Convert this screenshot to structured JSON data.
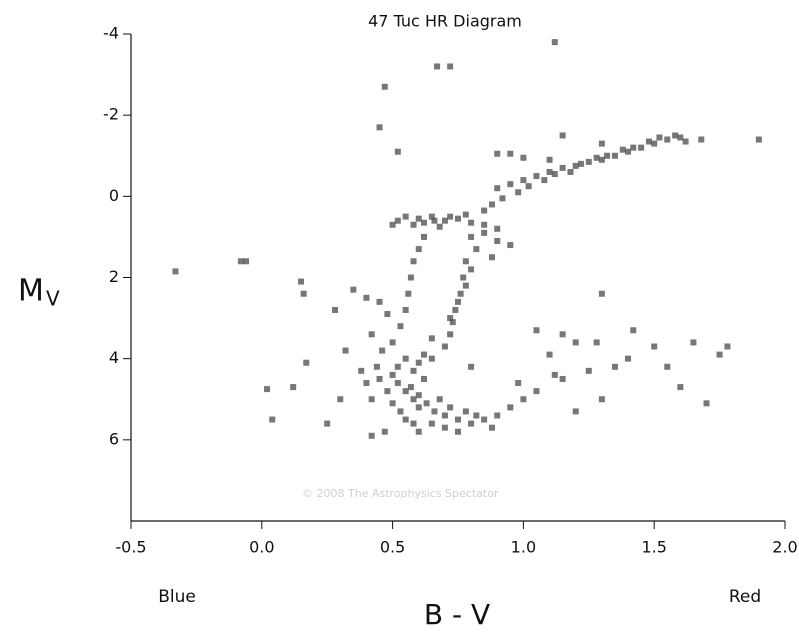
{
  "chart_data": {
    "type": "scatter",
    "title": "47 Tuc HR Diagram",
    "xlabel": "B - V",
    "ylabel": "M",
    "ylabel_sub": "V",
    "annotations": [
      "Blue",
      "Red"
    ],
    "watermark": "© 2008 The Astrophysics Spectator",
    "xlim": [
      -0.5,
      2.0
    ],
    "xticks": [
      -0.5,
      {
        "value": 0,
        "label": "0.0"
      },
      0.5,
      {
        "value": 1,
        "label": "1.0"
      },
      1.5,
      {
        "value": 2,
        "label": "2.0"
      }
    ],
    "ylim": [
      8,
      -4
    ],
    "yticks": [
      -4,
      -2,
      0,
      2,
      4,
      6
    ],
    "grid": false,
    "series": [
      {
        "color": "#4a4a4a",
        "x": [
          0.9,
          0.95,
          1.0,
          1.05,
          1.1,
          1.15,
          1.2,
          1.25,
          1.3,
          1.35,
          1.4,
          1.45,
          1.5,
          1.55,
          1.6,
          1.62,
          1.58,
          1.52,
          1.48,
          1.42,
          1.38,
          1.32,
          1.28,
          1.22,
          1.18,
          1.12,
          1.08,
          1.02,
          0.98,
          0.92,
          0.88,
          0.85,
          1.1,
          1.0,
          1.3,
          1.68,
          1.9,
          1.15,
          0.95,
          0.55,
          0.6,
          0.65,
          0.7,
          0.75,
          0.8,
          0.58,
          0.62,
          0.68,
          0.72,
          0.78,
          0.52,
          0.85,
          0.9,
          0.5,
          0.66,
          0.8,
          0.82,
          0.78,
          0.77,
          0.76,
          0.74,
          0.73,
          0.72,
          0.7,
          0.85,
          0.9,
          0.95,
          0.88,
          0.8,
          0.78,
          0.75,
          0.72,
          0.65,
          0.62,
          0.6,
          0.58,
          0.57,
          0.56,
          0.55,
          0.53,
          0.55,
          0.52,
          0.5,
          0.52,
          0.55,
          0.58,
          0.6,
          0.62,
          0.58,
          0.6,
          0.65,
          0.62,
          0.57,
          0.6,
          0.63,
          0.66,
          0.7,
          0.75,
          0.8,
          0.85,
          0.9,
          0.95,
          0.65,
          0.7,
          0.6,
          0.55,
          0.5,
          0.48,
          0.45,
          0.44,
          0.68,
          0.72,
          0.78,
          0.82,
          0.88,
          0.75,
          0.58,
          0.53,
          0.42,
          0.4,
          0.38,
          0.46,
          0.5,
          1.0,
          1.05,
          0.98,
          -0.33,
          -0.08,
          -0.06,
          0.15,
          0.16,
          0.12,
          0.02,
          0.04,
          0.25,
          0.3,
          0.32,
          0.17,
          0.28,
          0.35,
          0.4,
          0.45,
          0.42,
          0.48,
          1.12,
          0.72,
          0.67,
          0.47,
          0.45,
          0.52,
          0.9,
          1.05,
          1.15,
          1.2,
          1.3,
          1.35,
          1.42,
          1.5,
          1.6,
          1.65,
          1.7,
          1.75,
          1.78,
          1.12,
          1.15,
          1.2,
          1.1,
          1.25,
          1.4,
          1.55,
          1.28,
          0.42,
          0.47,
          0.8,
          1.3
        ],
        "values": [
          -0.2,
          -0.3,
          -0.4,
          -0.5,
          -0.6,
          -0.7,
          -0.75,
          -0.85,
          -0.9,
          -1.0,
          -1.1,
          -1.2,
          -1.3,
          -1.4,
          -1.45,
          -1.35,
          -1.5,
          -1.45,
          -1.35,
          -1.2,
          -1.15,
          -1.0,
          -0.95,
          -0.8,
          -0.6,
          -0.55,
          -0.4,
          -0.25,
          -0.1,
          0.05,
          0.2,
          0.35,
          -0.9,
          -0.95,
          -1.3,
          -1.4,
          -1.4,
          -1.5,
          -1.05,
          0.5,
          0.55,
          0.5,
          0.6,
          0.55,
          0.65,
          0.7,
          0.65,
          0.75,
          0.5,
          0.45,
          0.6,
          0.7,
          0.8,
          0.7,
          0.6,
          1.0,
          1.3,
          1.6,
          2.0,
          2.4,
          2.8,
          3.1,
          3.4,
          3.7,
          0.9,
          1.1,
          1.2,
          1.5,
          1.8,
          2.2,
          2.6,
          3.0,
          3.5,
          1.0,
          1.3,
          1.6,
          2.0,
          2.4,
          2.8,
          3.2,
          4.0,
          4.2,
          4.4,
          4.6,
          4.8,
          5.0,
          5.2,
          4.5,
          4.3,
          4.1,
          4.0,
          3.9,
          4.7,
          4.9,
          5.1,
          5.3,
          5.4,
          5.5,
          5.6,
          5.5,
          5.4,
          5.2,
          5.6,
          5.7,
          5.8,
          5.5,
          5.1,
          4.8,
          4.5,
          4.2,
          5.0,
          5.2,
          5.3,
          5.4,
          5.7,
          5.8,
          5.6,
          5.3,
          5.0,
          4.6,
          4.3,
          3.8,
          3.6,
          5.0,
          4.8,
          4.6,
          1.85,
          1.6,
          1.6,
          2.1,
          2.4,
          4.7,
          4.75,
          5.5,
          5.6,
          5.0,
          3.8,
          4.1,
          2.8,
          2.3,
          2.5,
          2.6,
          3.4,
          2.9,
          -3.8,
          -3.2,
          -3.2,
          -2.7,
          -1.7,
          -1.1,
          -1.05,
          3.3,
          3.4,
          3.6,
          2.4,
          4.2,
          3.3,
          3.7,
          4.7,
          3.6,
          5.1,
          3.9,
          3.7,
          4.4,
          4.5,
          5.3,
          3.9,
          4.3,
          4.0,
          4.2,
          3.6,
          5.9,
          5.8,
          4.2,
          5.0
        ]
      }
    ]
  }
}
